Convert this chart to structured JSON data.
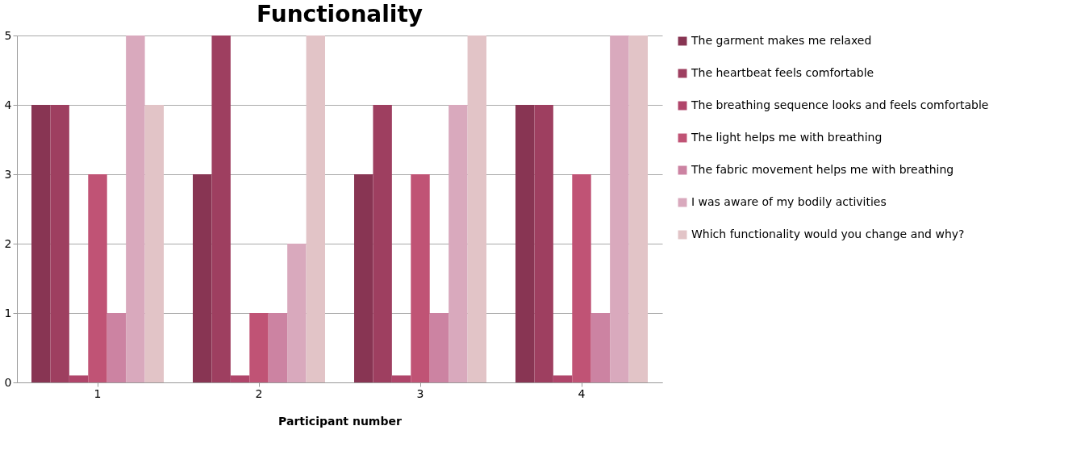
{
  "chart_data": {
    "type": "bar",
    "title": "Functionality",
    "xlabel": "Participant number",
    "categories": [
      "1",
      "2",
      "3",
      "4"
    ],
    "series": [
      {
        "name": "The garment makes me relaxed",
        "color": "#883553",
        "values": [
          4,
          3,
          3,
          4
        ]
      },
      {
        "name": "The heartbeat feels comfortable",
        "color": "#9e3f60",
        "values": [
          4,
          5,
          4,
          4
        ]
      },
      {
        "name": "The breathing sequence looks and feels comfortable",
        "color": "#b0456a",
        "values": [
          0.1,
          0.1,
          0.1,
          0.1
        ]
      },
      {
        "name": "The light helps me with breathing",
        "color": "#c05375",
        "values": [
          3,
          1,
          3,
          3
        ]
      },
      {
        "name": "The fabric movement helps me with breathing",
        "color": "#cc83a2",
        "values": [
          1,
          1,
          1,
          1
        ]
      },
      {
        "name": "I was aware of my bodily activities",
        "color": "#d9a9bd",
        "values": [
          5,
          2,
          4,
          5
        ]
      },
      {
        "name": "Which functionality would you change and why?",
        "color": "#e2c4c7",
        "values": [
          4,
          5,
          5,
          5
        ]
      }
    ],
    "ylim": [
      0,
      5
    ],
    "yticks": [
      0,
      1,
      2,
      3,
      4,
      5
    ],
    "grid": "y",
    "legend": "right"
  }
}
